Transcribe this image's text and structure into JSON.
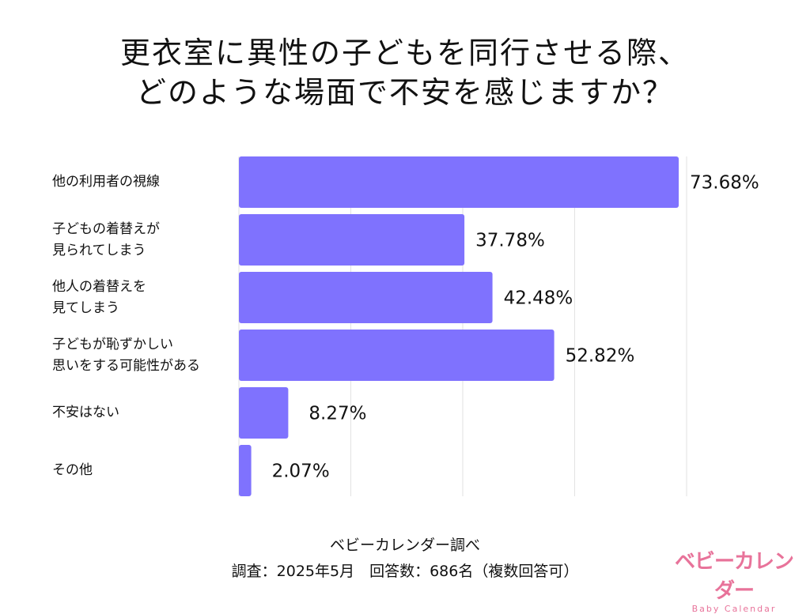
{
  "title_lines": [
    "更衣室に異性の子どもを同行させる際、",
    "どのような場面で不安を感じますか？"
  ],
  "chart_data": {
    "type": "bar",
    "orientation": "horizontal",
    "title": "更衣室に異性の子どもを同行させる際、どのような場面で不安を感じますか？",
    "categories": [
      "他の利用者の視線",
      "子どもの着替えが\n見られてしまう",
      "他人の着替えを\n見てしまう",
      "子どもが恥ずかしい\n思いをする可能性がある",
      "不安はない",
      "その他"
    ],
    "values": [
      73.68,
      37.78,
      42.48,
      52.82,
      8.27,
      2.07
    ],
    "value_labels": [
      "73.68%",
      "37.78%",
      "42.48%",
      "52.82%",
      "8.27%",
      "2.07%"
    ],
    "unit": "%",
    "xlim": [
      0,
      75
    ],
    "gridlines": [
      18.75,
      37.5,
      56.25,
      75
    ],
    "grid": true,
    "bar_color": "#7f72fe"
  },
  "source": "ベビーカレンダー調べ",
  "survey_info": "調査：2025年5月　回答数：686名（複数回答可）",
  "logo": {
    "jp": "ベビーカレンダー",
    "en": "Baby Calendar",
    "color": "#e8739a"
  }
}
